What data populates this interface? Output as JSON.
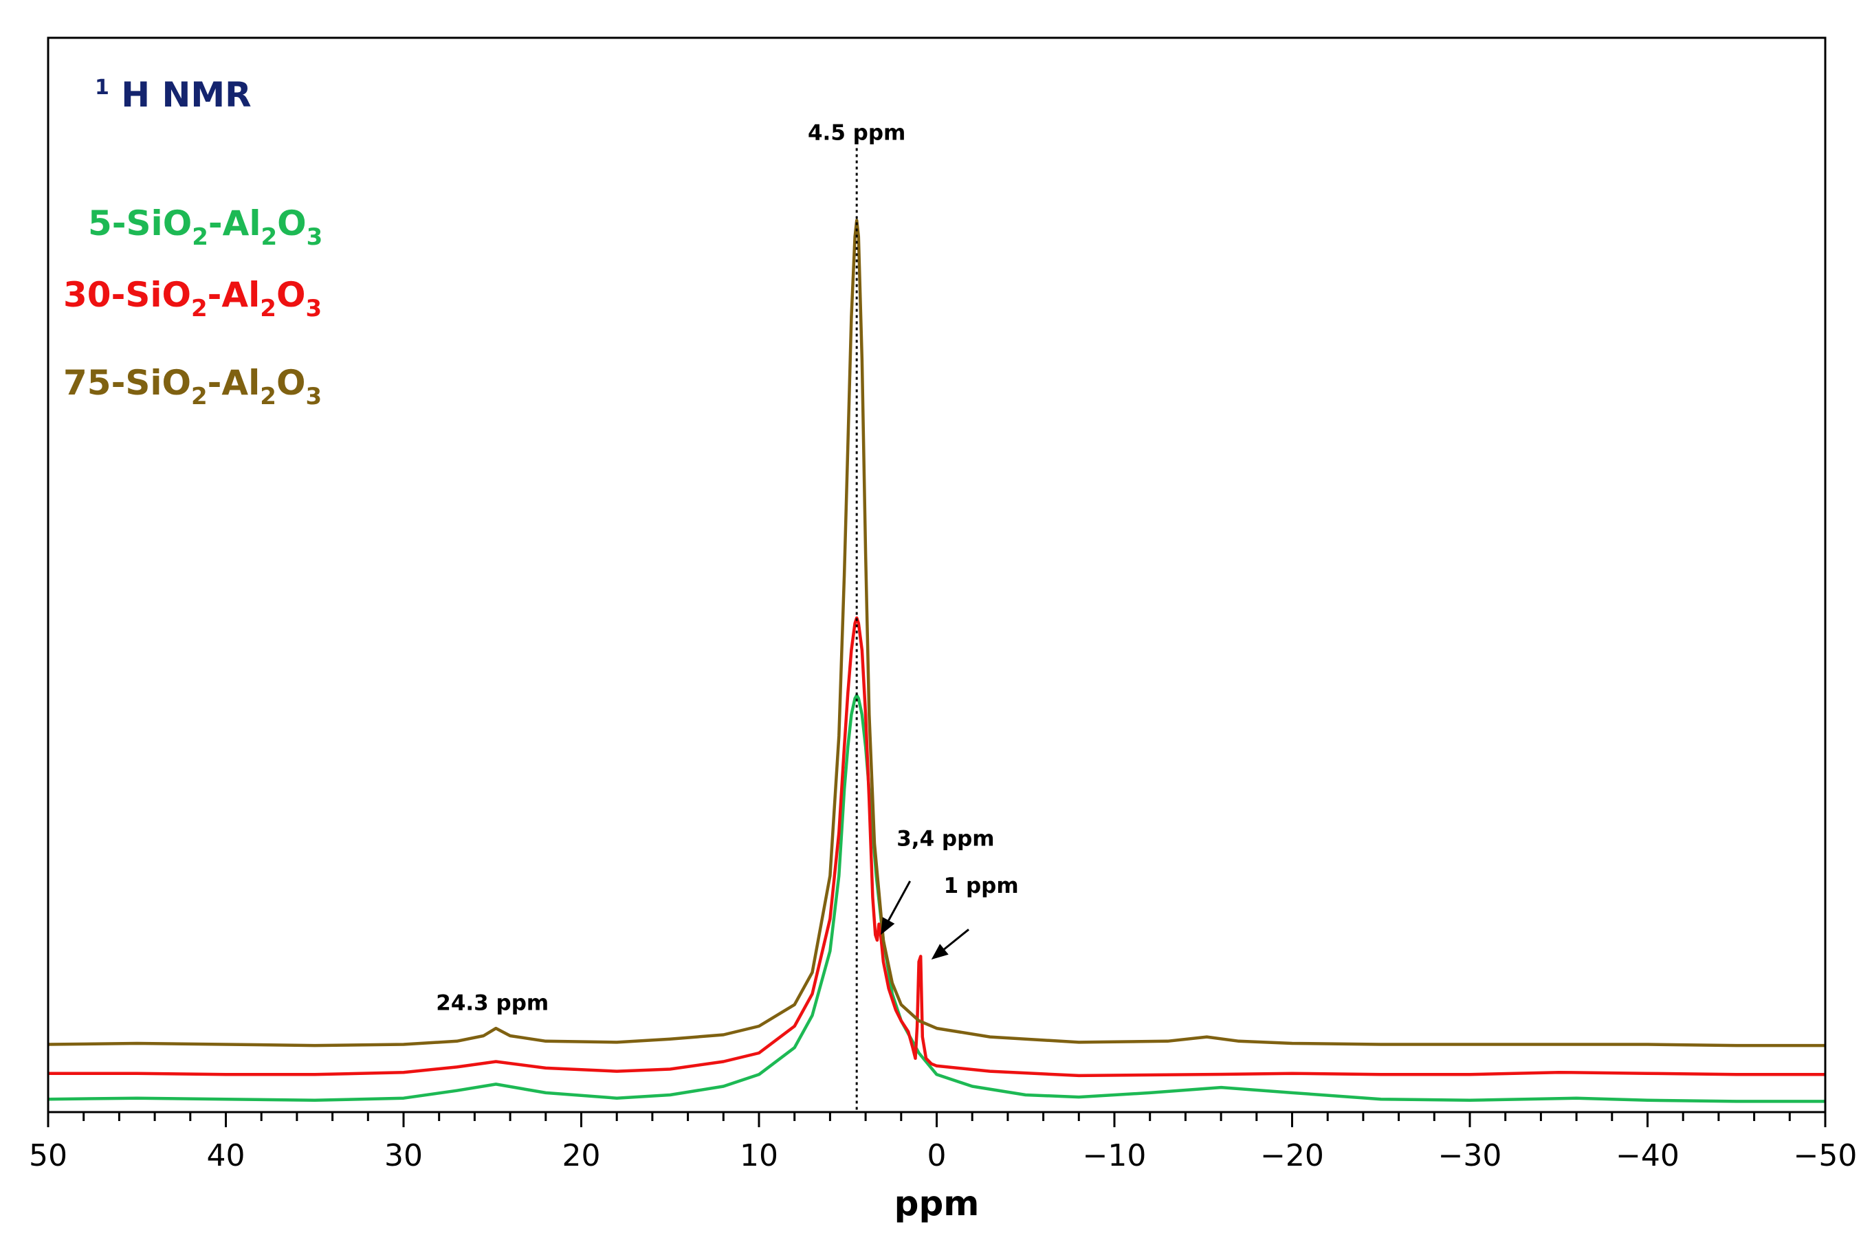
{
  "chart_data": {
    "type": "line",
    "title": {
      "superscript": "1",
      "text": "H NMR"
    },
    "xlabel": "ppm",
    "ylabel": "",
    "xlim": [
      50,
      -50
    ],
    "x_reversed": true,
    "ylim": [
      0,
      1.0
    ],
    "grid": false,
    "legend_position": "top-left",
    "x_ticks": [
      50,
      40,
      30,
      20,
      10,
      0,
      -10,
      -20,
      -30,
      -40,
      -50
    ],
    "x_tick_labels": [
      "50",
      "40",
      "30",
      "20",
      "10",
      "0",
      "−10",
      "−20",
      "−30",
      "−40",
      "−50"
    ],
    "series": [
      {
        "name": "5-SiO2-Al2O3",
        "label_parts": [
          "5-SiO",
          "2",
          "-Al",
          "2",
          "O",
          "3"
        ],
        "color": "#1db954",
        "points": [
          [
            50,
            0.012
          ],
          [
            45,
            0.013
          ],
          [
            40,
            0.012
          ],
          [
            35,
            0.011
          ],
          [
            30,
            0.013
          ],
          [
            27,
            0.02
          ],
          [
            24.8,
            0.026
          ],
          [
            22,
            0.018
          ],
          [
            18,
            0.013
          ],
          [
            15,
            0.016
          ],
          [
            12,
            0.024
          ],
          [
            10,
            0.035
          ],
          [
            8,
            0.06
          ],
          [
            7,
            0.09
          ],
          [
            6,
            0.15
          ],
          [
            5.5,
            0.22
          ],
          [
            5.2,
            0.3
          ],
          [
            5,
            0.34
          ],
          [
            4.8,
            0.37
          ],
          [
            4.6,
            0.385
          ],
          [
            4.5,
            0.388
          ],
          [
            4.4,
            0.385
          ],
          [
            4.2,
            0.37
          ],
          [
            4,
            0.34
          ],
          [
            3.7,
            0.28
          ],
          [
            3.4,
            0.22
          ],
          [
            3,
            0.16
          ],
          [
            2.5,
            0.11
          ],
          [
            2,
            0.085
          ],
          [
            1,
            0.055
          ],
          [
            0,
            0.035
          ],
          [
            -2,
            0.024
          ],
          [
            -5,
            0.016
          ],
          [
            -8,
            0.014
          ],
          [
            -12,
            0.018
          ],
          [
            -16,
            0.023
          ],
          [
            -20,
            0.018
          ],
          [
            -25,
            0.012
          ],
          [
            -30,
            0.011
          ],
          [
            -36,
            0.013
          ],
          [
            -40,
            0.011
          ],
          [
            -45,
            0.01
          ],
          [
            -50,
            0.01
          ]
        ]
      },
      {
        "name": "30-SiO2-Al2O3",
        "label_parts": [
          "30-SiO",
          "2",
          "-Al",
          "2",
          "O",
          "3"
        ],
        "color": "#ee1111",
        "points": [
          [
            50,
            0.036
          ],
          [
            45,
            0.036
          ],
          [
            40,
            0.035
          ],
          [
            35,
            0.035
          ],
          [
            30,
            0.037
          ],
          [
            27,
            0.042
          ],
          [
            24.8,
            0.047
          ],
          [
            22,
            0.041
          ],
          [
            18,
            0.038
          ],
          [
            15,
            0.04
          ],
          [
            12,
            0.047
          ],
          [
            10,
            0.055
          ],
          [
            8,
            0.08
          ],
          [
            7,
            0.11
          ],
          [
            6,
            0.18
          ],
          [
            5.5,
            0.26
          ],
          [
            5.2,
            0.34
          ],
          [
            5,
            0.39
          ],
          [
            4.8,
            0.43
          ],
          [
            4.6,
            0.455
          ],
          [
            4.5,
            0.46
          ],
          [
            4.4,
            0.455
          ],
          [
            4.2,
            0.43
          ],
          [
            4,
            0.37
          ],
          [
            3.8,
            0.29
          ],
          [
            3.6,
            0.2
          ],
          [
            3.45,
            0.165
          ],
          [
            3.35,
            0.16
          ],
          [
            3.25,
            0.175
          ],
          [
            3.15,
            0.165
          ],
          [
            3,
            0.14
          ],
          [
            2.7,
            0.115
          ],
          [
            2.3,
            0.095
          ],
          [
            2,
            0.085
          ],
          [
            1.6,
            0.075
          ],
          [
            1.35,
            0.06
          ],
          [
            1.2,
            0.05
          ],
          [
            1.1,
            0.08
          ],
          [
            1,
            0.14
          ],
          [
            0.9,
            0.145
          ],
          [
            0.8,
            0.07
          ],
          [
            0.6,
            0.05
          ],
          [
            0.3,
            0.045
          ],
          [
            0,
            0.043
          ],
          [
            -3,
            0.038
          ],
          [
            -8,
            0.034
          ],
          [
            -15,
            0.035
          ],
          [
            -20,
            0.036
          ],
          [
            -25,
            0.035
          ],
          [
            -30,
            0.035
          ],
          [
            -35,
            0.037
          ],
          [
            -40,
            0.036
          ],
          [
            -45,
            0.035
          ],
          [
            -50,
            0.035
          ]
        ]
      },
      {
        "name": "75-SiO2-Al2O3",
        "label_parts": [
          "75-SiO",
          "2",
          "-Al",
          "2",
          "O",
          "3"
        ],
        "color": "#7f6111",
        "points": [
          [
            50,
            0.063
          ],
          [
            45,
            0.064
          ],
          [
            40,
            0.063
          ],
          [
            35,
            0.062
          ],
          [
            30,
            0.063
          ],
          [
            27,
            0.066
          ],
          [
            25.5,
            0.071
          ],
          [
            24.8,
            0.078
          ],
          [
            24,
            0.071
          ],
          [
            22,
            0.066
          ],
          [
            18,
            0.065
          ],
          [
            15,
            0.068
          ],
          [
            12,
            0.072
          ],
          [
            10,
            0.08
          ],
          [
            8,
            0.1
          ],
          [
            7,
            0.13
          ],
          [
            6,
            0.22
          ],
          [
            5.5,
            0.35
          ],
          [
            5.2,
            0.5
          ],
          [
            5,
            0.62
          ],
          [
            4.8,
            0.74
          ],
          [
            4.6,
            0.815
          ],
          [
            4.5,
            0.83
          ],
          [
            4.4,
            0.815
          ],
          [
            4.2,
            0.7
          ],
          [
            4,
            0.52
          ],
          [
            3.8,
            0.37
          ],
          [
            3.5,
            0.25
          ],
          [
            3,
            0.16
          ],
          [
            2.5,
            0.12
          ],
          [
            2,
            0.1
          ],
          [
            1,
            0.085
          ],
          [
            0,
            0.078
          ],
          [
            -3,
            0.07
          ],
          [
            -8,
            0.065
          ],
          [
            -13,
            0.066
          ],
          [
            -15.2,
            0.07
          ],
          [
            -17,
            0.066
          ],
          [
            -20,
            0.064
          ],
          [
            -25,
            0.063
          ],
          [
            -30,
            0.063
          ],
          [
            -35,
            0.063
          ],
          [
            -40,
            0.063
          ],
          [
            -45,
            0.062
          ],
          [
            -50,
            0.062
          ]
        ]
      }
    ],
    "annotations": [
      {
        "id": "ann-4-5",
        "text": "4.5 ppm",
        "x": 4.5,
        "y": 0.905
      },
      {
        "id": "ann-24-3",
        "text": "24.3 ppm",
        "x": 25,
        "y": 0.095
      },
      {
        "id": "ann-3-4",
        "text": "3,4 ppm",
        "x": -0.5,
        "y": 0.248
      },
      {
        "id": "ann-1",
        "text": "1 ppm",
        "x": -2.5,
        "y": 0.204
      }
    ],
    "arrows": [
      {
        "id": "arrow-3-4",
        "from": [
          1.5,
          0.215
        ],
        "to": [
          3.15,
          0.165
        ]
      },
      {
        "id": "arrow-1",
        "from": [
          -1.8,
          0.17
        ],
        "to": [
          0.3,
          0.142
        ]
      }
    ],
    "reference_line": {
      "x": 4.5,
      "style": "dotted"
    }
  }
}
